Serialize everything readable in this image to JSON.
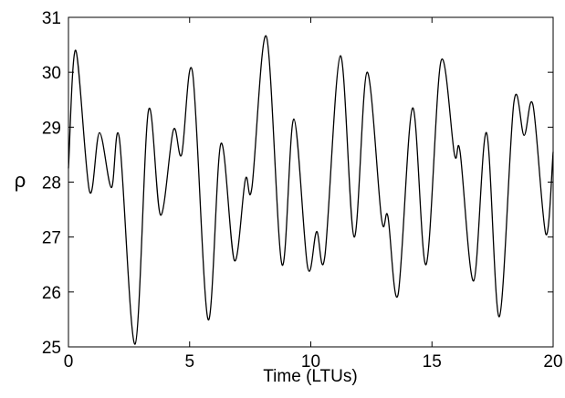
{
  "chart_data": {
    "type": "line",
    "x_label": "Time (LTUs)",
    "y_label": "ρ",
    "xlim": [
      0,
      20
    ],
    "ylim": [
      25,
      31
    ],
    "xticks": [
      0,
      5,
      10,
      15,
      20
    ],
    "yticks": [
      25,
      26,
      27,
      28,
      29,
      30,
      31
    ],
    "grid": false,
    "series": [
      {
        "color": "#000000",
        "x": [
          0,
          0.3,
          0.87,
          1.28,
          1.77,
          2.1,
          2.75,
          3.3,
          3.8,
          4.33,
          4.67,
          5.12,
          5.76,
          6.29,
          6.85,
          7.3,
          7.57,
          8.17,
          8.81,
          9.3,
          9.87,
          10.24,
          10.58,
          11.22,
          11.79,
          12.32,
          12.92,
          13.18,
          13.6,
          14.2,
          14.76,
          15.37,
          15.93,
          16.16,
          16.72,
          17.25,
          17.78,
          18.38,
          18.8,
          19.17,
          19.7,
          20
        ],
        "values": [
          28.25,
          30.4,
          27.83,
          28.9,
          27.9,
          28.8,
          25.05,
          29.3,
          27.4,
          28.95,
          28.5,
          30.0,
          25.5,
          28.7,
          26.57,
          28.05,
          27.9,
          30.65,
          26.5,
          29.15,
          26.45,
          27.1,
          26.65,
          30.3,
          27.0,
          30.0,
          27.33,
          27.38,
          25.95,
          29.35,
          26.5,
          30.2,
          28.5,
          28.55,
          26.2,
          28.9,
          25.55,
          29.45,
          28.85,
          29.4,
          27.05,
          28.55
        ]
      }
    ]
  }
}
